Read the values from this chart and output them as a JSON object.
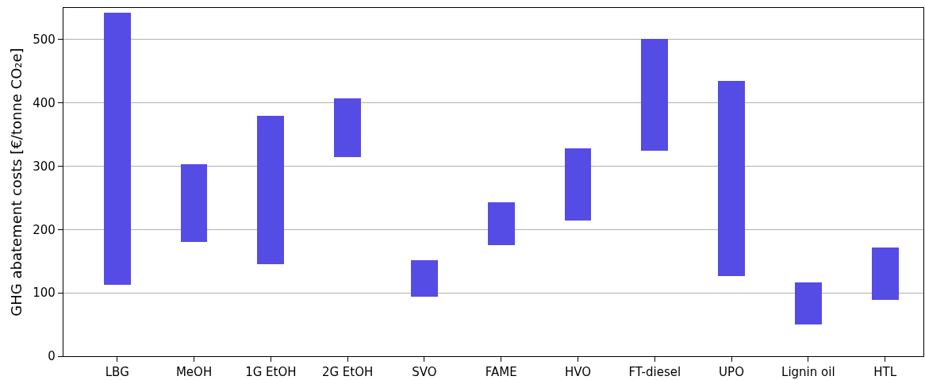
{
  "chart_data": {
    "type": "bar",
    "ylabel": "GHG abatement costs [€/tonne CO₂e]",
    "categories": [
      "LBG",
      "MeOH",
      "1G EtOH",
      "2G EtOH",
      "SVO",
      "FAME",
      "HVO",
      "FT-diesel",
      "UPO",
      "Lignin oil",
      "HTL"
    ],
    "base": [
      113,
      180,
      145,
      315,
      94,
      175,
      214,
      325,
      127,
      50,
      89
    ],
    "values": [
      429,
      123,
      235,
      92,
      58,
      68,
      114,
      176,
      308,
      67,
      83
    ],
    "color": "#554ce6",
    "ylim": [
      0,
      550
    ],
    "yticks": [
      0,
      100,
      200,
      300,
      400,
      500
    ],
    "grid": "y",
    "legend": false
  }
}
